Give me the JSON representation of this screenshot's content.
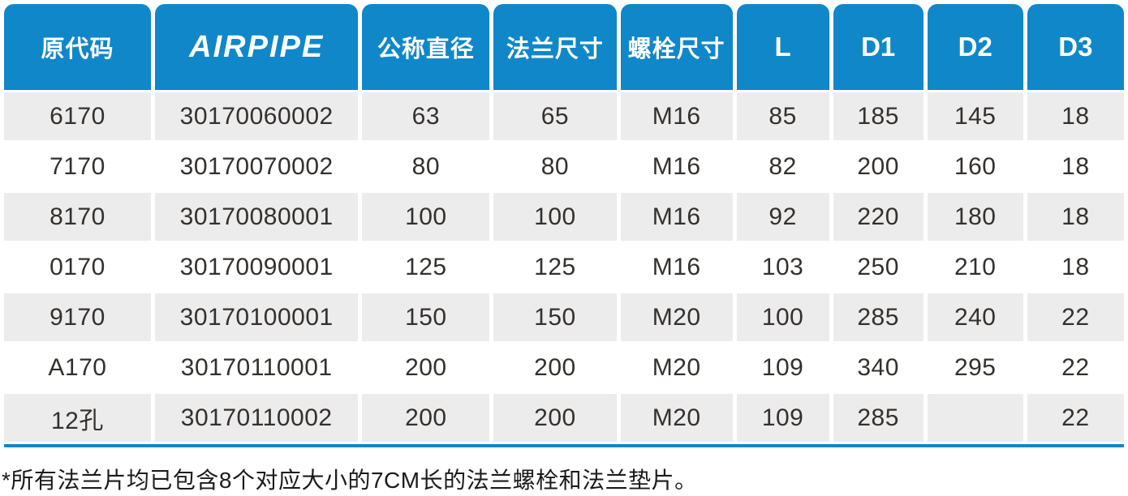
{
  "colors": {
    "accent": "#1087c9",
    "row_stripe": "#ececec",
    "cell_text": "#34302e",
    "note_text": "#1b1b1b"
  },
  "table": {
    "columns": [
      {
        "label": "原代码",
        "kind": "cjk"
      },
      {
        "label": "AIRPIPE",
        "kind": "brand"
      },
      {
        "label": "公称直径",
        "kind": "cjk"
      },
      {
        "label": "法兰尺寸",
        "kind": "cjk"
      },
      {
        "label": "螺栓尺寸",
        "kind": "cjk"
      },
      {
        "label": "L",
        "kind": "latin"
      },
      {
        "label": "D1",
        "kind": "latin"
      },
      {
        "label": "D2",
        "kind": "latin"
      },
      {
        "label": "D3",
        "kind": "latin"
      }
    ],
    "rows": [
      [
        "6170",
        "30170060002",
        "63",
        "65",
        "M16",
        "85",
        "185",
        "145",
        "18"
      ],
      [
        "7170",
        "30170070002",
        "80",
        "80",
        "M16",
        "82",
        "200",
        "160",
        "18"
      ],
      [
        "8170",
        "30170080001",
        "100",
        "100",
        "M16",
        "92",
        "220",
        "180",
        "18"
      ],
      [
        "0170",
        "30170090001",
        "125",
        "125",
        "M16",
        "103",
        "250",
        "210",
        "18"
      ],
      [
        "9170",
        "30170100001",
        "150",
        "150",
        "M20",
        "100",
        "285",
        "240",
        "22"
      ],
      [
        "A170",
        "30170110001",
        "200",
        "200",
        "M20",
        "109",
        "340",
        "295",
        "22"
      ],
      [
        "12孔",
        "30170110002",
        "200",
        "200",
        "M20",
        "109",
        "285",
        "",
        "22"
      ]
    ]
  },
  "footnote": "*所有法兰片均已包含8个对应大小的7CM长的法兰螺栓和法兰垫片。"
}
